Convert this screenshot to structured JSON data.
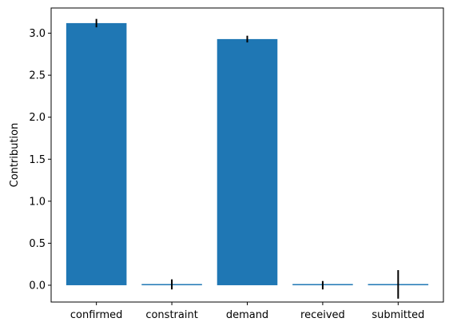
{
  "chart_data": {
    "type": "bar",
    "title": "",
    "xlabel": "",
    "ylabel": "Contribution",
    "categories": [
      "confirmed",
      "constraint",
      "demand",
      "received",
      "submitted"
    ],
    "values": [
      3.12,
      0.01,
      2.93,
      0.0,
      0.01
    ],
    "error": [
      0.05,
      0.06,
      0.04,
      0.05,
      0.17
    ],
    "ylim": [
      -0.2,
      3.3
    ],
    "yticks": [
      0.0,
      0.5,
      1.0,
      1.5,
      2.0,
      2.5,
      3.0
    ],
    "ytick_labels": [
      "0.0",
      "0.5",
      "1.0",
      "1.5",
      "2.0",
      "2.5",
      "3.0"
    ],
    "grid": false,
    "bar_color": "#1f77b4",
    "error_color": "#000000"
  }
}
